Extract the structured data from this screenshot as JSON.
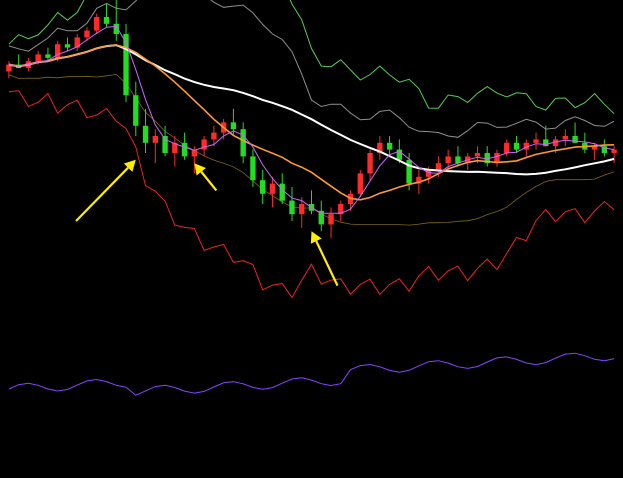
{
  "chart_data": {
    "type": "candlestick",
    "title": "",
    "xlabel": "",
    "ylabel": "",
    "ylim": [
      0,
      100
    ],
    "grid": false,
    "legend": "none",
    "colors": {
      "background": "#000000",
      "candle_up": "#ff2a2a",
      "candle_down": "#22dd22",
      "ma_long": "#ffffff",
      "ma_mid": "#ff9933",
      "ma_short": "#cc66ff",
      "band_upper": "#55cc55",
      "band_upper_2": "#cccccc",
      "band_lower": "#ee2222",
      "band_lower_2": "#ffcc33",
      "indicator_bottom": "#8844ff",
      "arrows": "#ffee00"
    },
    "candles": [
      {
        "o": 79,
        "h": 82,
        "l": 77,
        "c": 81
      },
      {
        "o": 81,
        "h": 84,
        "l": 80,
        "c": 80
      },
      {
        "o": 80,
        "h": 83,
        "l": 79,
        "c": 82
      },
      {
        "o": 82,
        "h": 85,
        "l": 81,
        "c": 84
      },
      {
        "o": 84,
        "h": 86,
        "l": 82,
        "c": 83
      },
      {
        "o": 83,
        "h": 88,
        "l": 82,
        "c": 87
      },
      {
        "o": 87,
        "h": 89,
        "l": 85,
        "c": 86
      },
      {
        "o": 86,
        "h": 90,
        "l": 85,
        "c": 89
      },
      {
        "o": 89,
        "h": 92,
        "l": 88,
        "c": 91
      },
      {
        "o": 91,
        "h": 96,
        "l": 90,
        "c": 95
      },
      {
        "o": 95,
        "h": 99,
        "l": 92,
        "c": 93
      },
      {
        "o": 93,
        "h": 100,
        "l": 88,
        "c": 90
      },
      {
        "o": 90,
        "h": 93,
        "l": 70,
        "c": 72
      },
      {
        "o": 72,
        "h": 76,
        "l": 60,
        "c": 63
      },
      {
        "o": 63,
        "h": 68,
        "l": 55,
        "c": 58
      },
      {
        "o": 58,
        "h": 62,
        "l": 52,
        "c": 60
      },
      {
        "o": 60,
        "h": 63,
        "l": 54,
        "c": 55
      },
      {
        "o": 55,
        "h": 60,
        "l": 51,
        "c": 58
      },
      {
        "o": 58,
        "h": 61,
        "l": 53,
        "c": 54
      },
      {
        "o": 54,
        "h": 57,
        "l": 49,
        "c": 56
      },
      {
        "o": 56,
        "h": 60,
        "l": 54,
        "c": 59
      },
      {
        "o": 59,
        "h": 63,
        "l": 57,
        "c": 61
      },
      {
        "o": 61,
        "h": 65,
        "l": 59,
        "c": 64
      },
      {
        "o": 64,
        "h": 68,
        "l": 60,
        "c": 62
      },
      {
        "o": 62,
        "h": 64,
        "l": 52,
        "c": 54
      },
      {
        "o": 54,
        "h": 56,
        "l": 45,
        "c": 47
      },
      {
        "o": 47,
        "h": 50,
        "l": 40,
        "c": 43
      },
      {
        "o": 43,
        "h": 48,
        "l": 39,
        "c": 46
      },
      {
        "o": 46,
        "h": 49,
        "l": 40,
        "c": 41
      },
      {
        "o": 41,
        "h": 45,
        "l": 35,
        "c": 37
      },
      {
        "o": 37,
        "h": 42,
        "l": 33,
        "c": 40
      },
      {
        "o": 40,
        "h": 44,
        "l": 37,
        "c": 38
      },
      {
        "o": 38,
        "h": 41,
        "l": 32,
        "c": 34
      },
      {
        "o": 34,
        "h": 39,
        "l": 30,
        "c": 37
      },
      {
        "o": 37,
        "h": 41,
        "l": 35,
        "c": 40
      },
      {
        "o": 40,
        "h": 44,
        "l": 38,
        "c": 43
      },
      {
        "o": 43,
        "h": 50,
        "l": 42,
        "c": 49
      },
      {
        "o": 49,
        "h": 56,
        "l": 47,
        "c": 55
      },
      {
        "o": 55,
        "h": 60,
        "l": 53,
        "c": 58
      },
      {
        "o": 58,
        "h": 60,
        "l": 54,
        "c": 56
      },
      {
        "o": 56,
        "h": 59,
        "l": 52,
        "c": 53
      },
      {
        "o": 53,
        "h": 55,
        "l": 44,
        "c": 46
      },
      {
        "o": 46,
        "h": 50,
        "l": 43,
        "c": 48
      },
      {
        "o": 48,
        "h": 51,
        "l": 46,
        "c": 50
      },
      {
        "o": 50,
        "h": 54,
        "l": 48,
        "c": 52
      },
      {
        "o": 52,
        "h": 56,
        "l": 50,
        "c": 54
      },
      {
        "o": 54,
        "h": 57,
        "l": 51,
        "c": 52
      },
      {
        "o": 52,
        "h": 55,
        "l": 50,
        "c": 54
      },
      {
        "o": 54,
        "h": 57,
        "l": 52,
        "c": 55
      },
      {
        "o": 55,
        "h": 57,
        "l": 51,
        "c": 52
      },
      {
        "o": 52,
        "h": 56,
        "l": 51,
        "c": 55
      },
      {
        "o": 55,
        "h": 59,
        "l": 54,
        "c": 58
      },
      {
        "o": 58,
        "h": 60,
        "l": 55,
        "c": 56
      },
      {
        "o": 56,
        "h": 59,
        "l": 54,
        "c": 58
      },
      {
        "o": 58,
        "h": 61,
        "l": 56,
        "c": 59
      },
      {
        "o": 59,
        "h": 63,
        "l": 57,
        "c": 57
      },
      {
        "o": 57,
        "h": 60,
        "l": 55,
        "c": 59
      },
      {
        "o": 59,
        "h": 62,
        "l": 57,
        "c": 60
      },
      {
        "o": 60,
        "h": 64,
        "l": 58,
        "c": 58
      },
      {
        "o": 58,
        "h": 61,
        "l": 55,
        "c": 56
      },
      {
        "o": 56,
        "h": 58,
        "l": 53,
        "c": 57
      },
      {
        "o": 57,
        "h": 59,
        "l": 54,
        "c": 55
      },
      {
        "o": 55,
        "h": 57,
        "l": 52,
        "c": 56
      }
    ]
  }
}
